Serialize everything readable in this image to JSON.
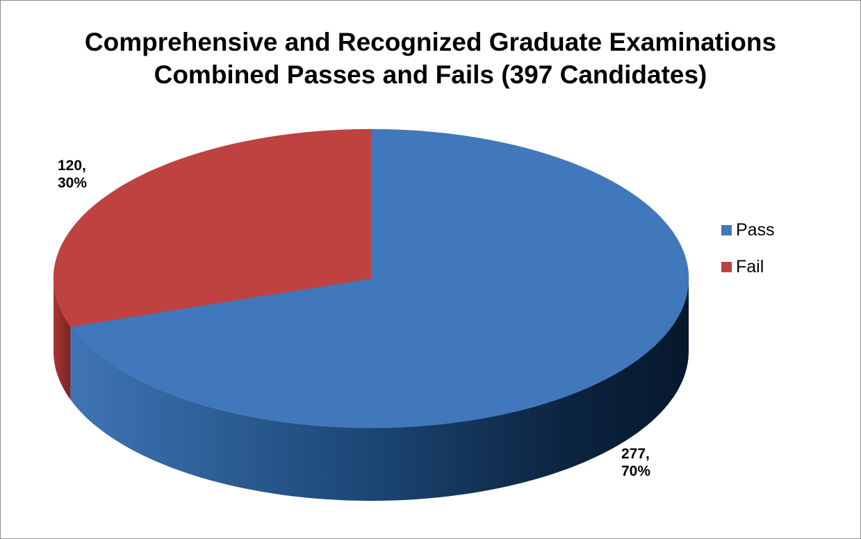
{
  "chart_data": {
    "type": "pie",
    "title": "Comprehensive and Recognized Graduate Examinations\nCombined Passes and Fails (397 Candidates)",
    "categories": [
      "Pass",
      "Fail"
    ],
    "values": [
      277,
      120
    ],
    "value_labels": [
      "277,\n70%",
      "120,\n30%"
    ],
    "colors": [
      "#4178bc",
      "#be4240"
    ],
    "legend": "right"
  }
}
